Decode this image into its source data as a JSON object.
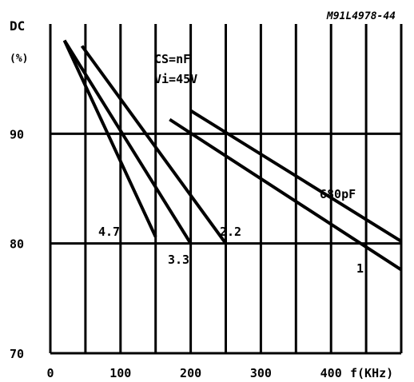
{
  "figure_code": "M91L4978-44",
  "colors": {
    "ink": "#000000",
    "background": "#ffffff"
  },
  "chart_data": {
    "type": "line",
    "ylabel": "DC",
    "ylabel_unit": "(%)",
    "xlabel": "f(KHz)",
    "xlim": [
      0,
      500
    ],
    "ylim": [
      70,
      100
    ],
    "x_ticks": [
      0,
      100,
      200,
      300,
      400
    ],
    "x_tick_labels": [
      "0",
      "100",
      "200",
      "300",
      "400"
    ],
    "y_ticks": [
      70,
      80,
      90
    ],
    "y_tick_labels": [
      "70",
      "80",
      "90"
    ],
    "vertical_grid_x": [
      50,
      100,
      150,
      200,
      250,
      300,
      350,
      400,
      450
    ],
    "horizontal_grid_y": [
      80,
      90
    ],
    "condition_lines": [
      "CS=nF",
      "Vi=45V"
    ],
    "series": [
      {
        "name": "4.7",
        "label": "4.7",
        "x": [
          20,
          150
        ],
        "y": [
          98.5,
          80.6
        ]
      },
      {
        "name": "3.3",
        "label": "3.3",
        "x": [
          20,
          200
        ],
        "y": [
          98.5,
          80.0
        ]
      },
      {
        "name": "2.2",
        "label": "2.2",
        "x": [
          45,
          250
        ],
        "y": [
          98.0,
          80.0
        ]
      },
      {
        "name": "680pF",
        "label": "680pF",
        "x": [
          200,
          500
        ],
        "y": [
          92.1,
          80.2
        ]
      },
      {
        "name": "1",
        "label": "1",
        "x": [
          170,
          500
        ],
        "y": [
          91.3,
          77.6
        ]
      }
    ]
  }
}
